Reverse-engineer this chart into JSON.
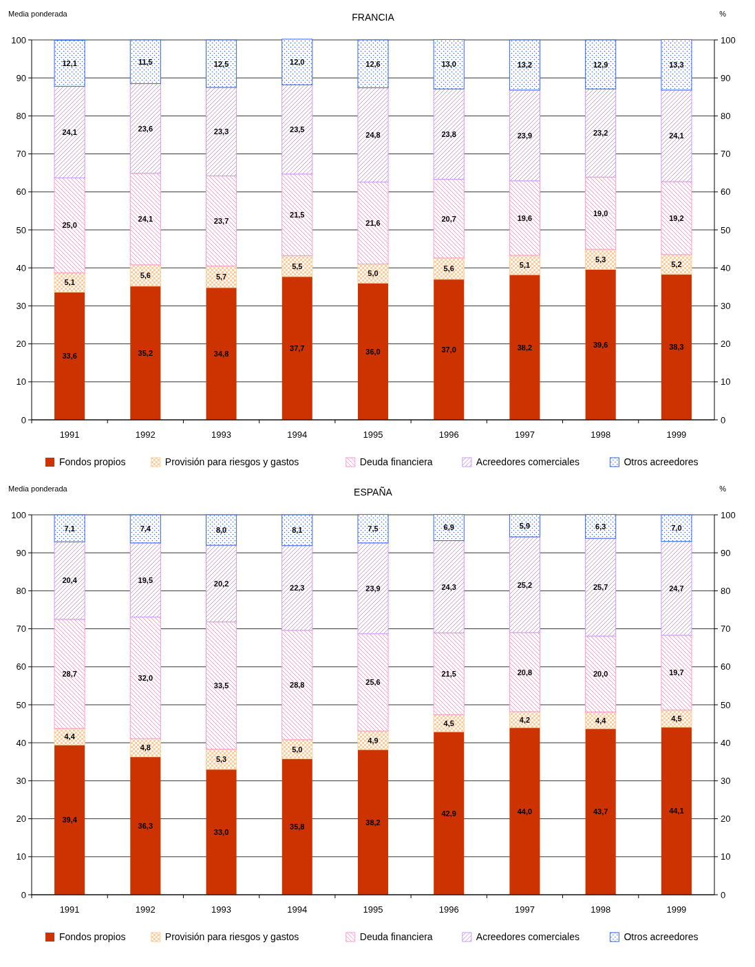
{
  "chart_data": [
    {
      "type": "bar",
      "title": "FRANCIA",
      "ylabel": "Media ponderada",
      "y2label": "%",
      "stacked": true,
      "grid": "y",
      "legend": "bottom",
      "categories": [
        "1991",
        "1992",
        "1993",
        "1994",
        "1995",
        "1996",
        "1997",
        "1998",
        "1999"
      ],
      "ylim": [
        0,
        100
      ],
      "yticks": [
        0,
        10,
        20,
        30,
        40,
        50,
        60,
        70,
        80,
        90,
        100
      ],
      "y2lim": [
        0,
        100
      ],
      "y2ticks": [
        0,
        10,
        20,
        30,
        40,
        50,
        60,
        70,
        80,
        90,
        100
      ],
      "series": [
        {
          "name": "Fondos propios",
          "color": "#cc3300",
          "values": [
            33.6,
            35.2,
            34.8,
            37.7,
            36.0,
            37.0,
            38.2,
            39.6,
            38.3
          ],
          "value_labels": [
            "33,6",
            "35,2",
            "34,8",
            "37,7",
            "36,0",
            "37,0",
            "38,2",
            "39,6",
            "38,3"
          ]
        },
        {
          "name": "Provisión para riesgos y gastos",
          "color": "#ffcc99",
          "values": [
            5.1,
            5.6,
            5.7,
            5.5,
            5.0,
            5.6,
            5.1,
            5.3,
            5.2
          ],
          "value_labels": [
            "5,1",
            "5,6",
            "5,7",
            "5,5",
            "5,0",
            "5,6",
            "5,1",
            "5,3",
            "5,2"
          ]
        },
        {
          "name": "Deuda financiera",
          "color": "#ff99cc",
          "values": [
            25.0,
            24.1,
            23.7,
            21.5,
            21.6,
            20.7,
            19.6,
            19.0,
            19.2
          ],
          "value_labels": [
            "25,0",
            "24,1",
            "23,7",
            "21,5",
            "21,6",
            "20,7",
            "19,6",
            "19,0",
            "19,2"
          ]
        },
        {
          "name": "Acreedores comerciales",
          "color": "#cc99ff",
          "values": [
            24.1,
            23.6,
            23.3,
            23.5,
            24.8,
            23.8,
            23.9,
            23.2,
            24.1
          ],
          "value_labels": [
            "24,1",
            "23,6",
            "23,3",
            "23,5",
            "24,8",
            "23,8",
            "23,9",
            "23,2",
            "24,1"
          ]
        },
        {
          "name": "Otros acreedores",
          "color": "#3366ff",
          "values": [
            12.1,
            11.5,
            12.5,
            12.0,
            12.6,
            13.0,
            13.2,
            12.9,
            13.3
          ],
          "value_labels": [
            "12,1",
            "11,5",
            "12,5",
            "12,0",
            "12,6",
            "13,0",
            "13,2",
            "12,9",
            "13,3"
          ]
        }
      ]
    },
    {
      "type": "bar",
      "title": "ESPAÑA",
      "ylabel": "Media ponderada",
      "y2label": "%",
      "stacked": true,
      "grid": "y",
      "legend": "bottom",
      "categories": [
        "1991",
        "1992",
        "1993",
        "1994",
        "1995",
        "1996",
        "1997",
        "1998",
        "1999"
      ],
      "ylim": [
        0,
        100
      ],
      "yticks": [
        0,
        10,
        20,
        30,
        40,
        50,
        60,
        70,
        80,
        90,
        100
      ],
      "y2lim": [
        0,
        100
      ],
      "y2ticks": [
        0,
        10,
        20,
        30,
        40,
        50,
        60,
        70,
        80,
        90,
        100
      ],
      "series": [
        {
          "name": "Fondos propios",
          "color": "#cc3300",
          "values": [
            39.4,
            36.3,
            33.0,
            35.8,
            38.2,
            42.9,
            44.0,
            43.7,
            44.1
          ],
          "value_labels": [
            "39,4",
            "36,3",
            "33,0",
            "35,8",
            "38,2",
            "42,9",
            "44,0",
            "43,7",
            "44,1"
          ]
        },
        {
          "name": "Provisión para riesgos y gastos",
          "color": "#ffcc99",
          "values": [
            4.4,
            4.8,
            5.3,
            5.0,
            4.9,
            4.5,
            4.2,
            4.4,
            4.5
          ],
          "value_labels": [
            "4,4",
            "4,8",
            "5,3",
            "5,0",
            "4,9",
            "4,5",
            "4,2",
            "4,4",
            "4,5"
          ]
        },
        {
          "name": "Deuda financiera",
          "color": "#ff99cc",
          "values": [
            28.7,
            32.0,
            33.5,
            28.8,
            25.6,
            21.5,
            20.8,
            20.0,
            19.7
          ],
          "value_labels": [
            "28,7",
            "32,0",
            "33,5",
            "28,8",
            "25,6",
            "21,5",
            "20,8",
            "20,0",
            "19,7"
          ]
        },
        {
          "name": "Acreedores comerciales",
          "color": "#cc99ff",
          "values": [
            20.4,
            19.5,
            20.2,
            22.3,
            23.9,
            24.3,
            25.2,
            25.7,
            24.7
          ],
          "value_labels": [
            "20,4",
            "19,5",
            "20,2",
            "22,3",
            "23,9",
            "24,3",
            "25,2",
            "25,7",
            "24,7"
          ]
        },
        {
          "name": "Otros acreedores",
          "color": "#3366ff",
          "values": [
            7.1,
            7.4,
            8.0,
            8.1,
            7.5,
            6.9,
            5.9,
            6.3,
            7.0
          ],
          "value_labels": [
            "7,1",
            "7,4",
            "8,0",
            "8,1",
            "7,5",
            "6,9",
            "5,9",
            "6,3",
            "7,0"
          ]
        }
      ]
    }
  ]
}
